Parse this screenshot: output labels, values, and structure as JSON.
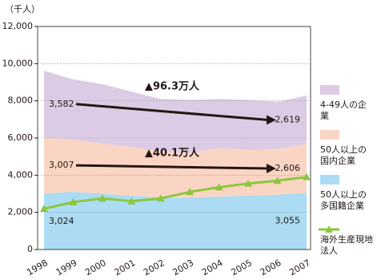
{
  "chart_data": {
    "type": "area",
    "stacked": true,
    "unit_label": "（千人）",
    "categories": [
      "1998",
      "1999",
      "2000",
      "2001",
      "2002",
      "2003",
      "2004",
      "2005",
      "2006",
      "2007"
    ],
    "series": [
      {
        "name": "50人以上の多国籍企業",
        "color": "#abdcf3",
        "values": [
          3024,
          3100,
          3000,
          2900,
          2800,
          2800,
          2850,
          2900,
          2950,
          3055
        ],
        "value_labels": [
          "3,024",
          null,
          null,
          null,
          null,
          null,
          null,
          null,
          null,
          "3,055"
        ]
      },
      {
        "name": "50人以上の国内企業",
        "color": "#fbd5c3",
        "values": [
          3007,
          2800,
          2700,
          2600,
          2500,
          2400,
          2600,
          2450,
          2450,
          2606
        ],
        "value_labels": [
          "3,007",
          null,
          null,
          null,
          null,
          null,
          null,
          null,
          null,
          "2,606"
        ]
      },
      {
        "name": "4-49人の企業",
        "color": "#dccbe4",
        "values": [
          3582,
          3250,
          3200,
          3000,
          2800,
          2850,
          2650,
          2700,
          2550,
          2619
        ],
        "value_labels": [
          "3,582",
          null,
          null,
          null,
          null,
          null,
          null,
          null,
          null,
          "2,619"
        ]
      },
      {
        "name": "海外生産現地法人",
        "type": "line",
        "color": "#8dc63f",
        "values": [
          2200,
          2550,
          2750,
          2600,
          2750,
          3100,
          3350,
          3550,
          3700,
          3900
        ]
      }
    ],
    "annotations": [
      "▲96.3万人",
      "▲40.1万人"
    ],
    "ylim": [
      0,
      12000
    ],
    "yticks": [
      {
        "value": 0,
        "label": "0"
      },
      {
        "value": 2000,
        "label": "2,000"
      },
      {
        "value": 4000,
        "label": "4,000"
      },
      {
        "value": 6000,
        "label": "6,000"
      },
      {
        "value": 8000,
        "label": "8,000"
      },
      {
        "value": 10000,
        "label": "10,000"
      },
      {
        "value": 12000,
        "label": "12,000"
      }
    ],
    "grid": true
  }
}
